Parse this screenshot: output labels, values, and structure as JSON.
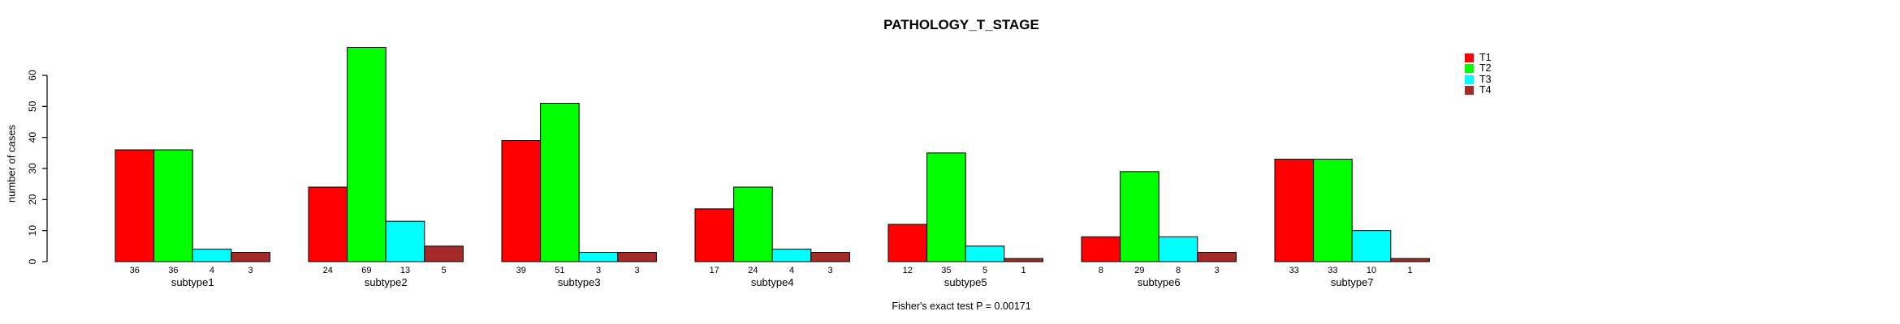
{
  "chart_data": {
    "type": "bar",
    "title": "PATHOLOGY_T_STAGE",
    "ylabel": "number of cases",
    "xlabel": "",
    "annotation": "Fisher's exact test P = 0.00171",
    "categories": [
      "subtype1",
      "subtype2",
      "subtype3",
      "subtype4",
      "subtype5",
      "subtype6",
      "subtype7"
    ],
    "series": [
      {
        "name": "T1",
        "color": "#FF0000",
        "values": [
          36,
          24,
          39,
          17,
          12,
          8,
          33
        ]
      },
      {
        "name": "T2",
        "color": "#00FF00",
        "values": [
          36,
          69,
          51,
          24,
          35,
          29,
          33
        ]
      },
      {
        "name": "T3",
        "color": "#00FFFF",
        "values": [
          4,
          13,
          3,
          4,
          5,
          8,
          10
        ]
      },
      {
        "name": "T4",
        "color": "#A52A2A",
        "values": [
          3,
          5,
          3,
          3,
          1,
          3,
          1
        ]
      }
    ],
    "yticks": [
      0,
      10,
      20,
      30,
      40,
      50,
      60
    ],
    "ylim": [
      0,
      60
    ],
    "grid": false,
    "legend_position": "right",
    "bar_value_labels": true,
    "bar_border_color": "#000000"
  }
}
